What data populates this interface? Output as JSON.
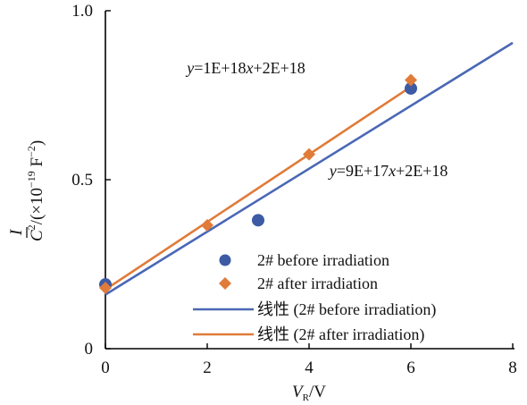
{
  "chart_data": {
    "type": "scatter",
    "xlabel": {
      "main": "V",
      "sub": "R",
      "unit": "/V"
    },
    "ylabel": {
      "numerator": "I",
      "denominator": "C",
      "exp": "2",
      "unit_prefix": "/(×10",
      "unit_exp": "−19",
      "unit_suffix": " F",
      "unit_suffix_exp": "−2",
      "unit_close": ")"
    },
    "xlim": [
      0,
      8
    ],
    "ylim": [
      0,
      1.0
    ],
    "x_ticks": [
      0,
      2,
      4,
      6,
      8
    ],
    "x_tick_labels": [
      "0",
      "2",
      "4",
      "6",
      "8"
    ],
    "y_ticks": [
      0,
      0.5,
      1.0
    ],
    "y_tick_labels": [
      "0",
      "0.5",
      "1.0"
    ],
    "grid": false,
    "legend_position": "bottom-right",
    "series": [
      {
        "name": "2# before irradiation",
        "marker": "circle",
        "color": "#3d5aa5",
        "x": [
          0,
          3,
          6
        ],
        "y": [
          0.19,
          0.38,
          0.77
        ]
      },
      {
        "name": "2# after irradiation",
        "marker": "diamond",
        "color": "#e07b39",
        "x": [
          0,
          2,
          4,
          6
        ],
        "y": [
          0.18,
          0.365,
          0.575,
          0.795
        ]
      }
    ],
    "fits": [
      {
        "name": "线性 (2# before irradiation)",
        "color": "#4a68b5",
        "x_range": [
          0,
          8
        ],
        "y_range": [
          0.16,
          0.905
        ]
      },
      {
        "name": "线性 (2# after irradiation)",
        "color": "#e07b39",
        "x_range": [
          0,
          6
        ],
        "y_range": [
          0.175,
          0.775
        ]
      }
    ],
    "annotations": [
      {
        "text": "y=1E+18x+2E+18",
        "x": 1.6,
        "y": 0.815
      },
      {
        "text": "y=9E+17x+2E+18",
        "x": 4.4,
        "y": 0.51
      }
    ]
  }
}
